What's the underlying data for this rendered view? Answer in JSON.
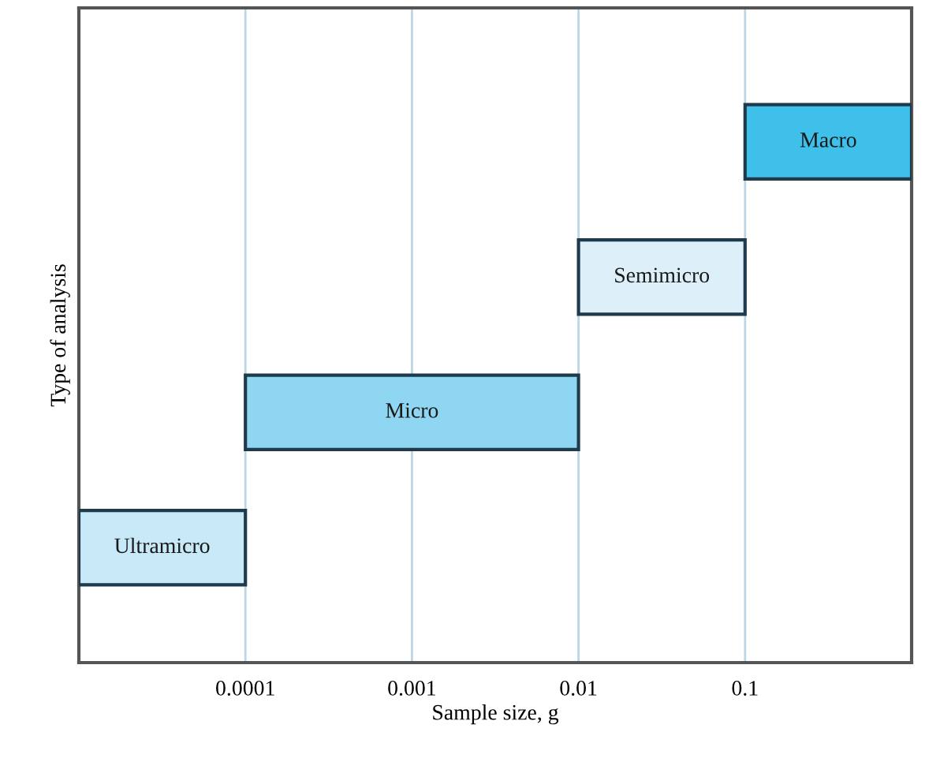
{
  "chart_data": {
    "type": "bar",
    "orientation": "horizontal",
    "log": "x",
    "xlabel": "Sample size, g",
    "ylabel": "Type of analysis",
    "categories": [
      "Macro",
      "Semimicro",
      "Micro",
      "Ultramicro"
    ],
    "base": [
      0.1,
      0.01,
      0.0001,
      1e-05
    ],
    "values": [
      0.9,
      0.09,
      0.0099,
      9e-05
    ],
    "colors": [
      "#3ec0ea",
      "#ddf0fa",
      "#8fd6f2",
      "#c8e9f7"
    ],
    "xlim": [
      1e-05,
      1
    ],
    "xticks": [
      0.0001,
      0.001,
      0.01,
      0.1
    ],
    "grid": "x",
    "tick_labels": "x"
  }
}
